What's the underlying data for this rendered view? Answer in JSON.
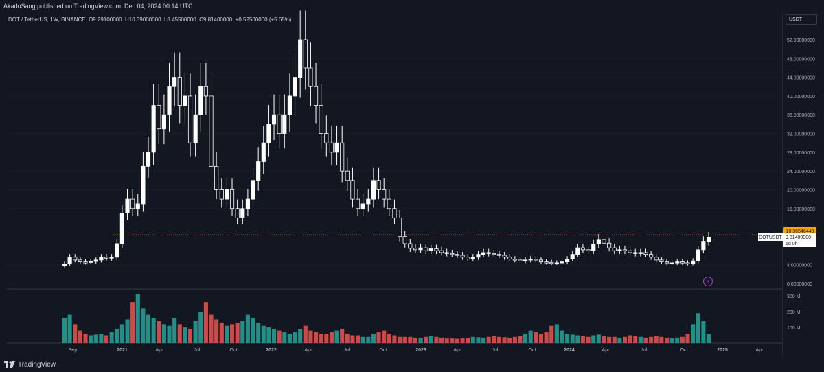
{
  "publisher": "AkadoSang published on TradingView.com, Dec 04, 2024 00:14 UTC",
  "legend": {
    "symbol": "DOT / TetherUS, 1W, BINANCE",
    "open": "O9.29100000",
    "high": "H10.39000000",
    "low": "L8.45500000",
    "close": "C9.81400000",
    "change": "+0.52500000 (+5.65%)"
  },
  "quote_currency": "USDT",
  "price_labels": {
    "level_line": "10.36546440",
    "current_ticker": "DOTUSDT",
    "current_price": "9.81400000",
    "countdown": "5d 0h"
  },
  "brand": "TradingView",
  "colors": {
    "background": "#131722",
    "candle": "#ffffff",
    "volume_up": "#26a69a",
    "volume_down": "#ef5350",
    "level_line": "#f7a600",
    "grid": "#1e222d"
  },
  "chart_data": {
    "type": "candlestick",
    "interval": "1W",
    "y_axis": {
      "ticks": [
        "52.00000000",
        "48.00000000",
        "44.00000000",
        "40.00000000",
        "36.00000000",
        "32.00000000",
        "28.00000000",
        "24.00000000",
        "20.00000000",
        "16.00000000",
        "4.00000000",
        "0.00000000"
      ],
      "ylim": [
        -1,
        56
      ]
    },
    "volume_axis": {
      "ticks": [
        "300 M",
        "200 M",
        "100 M"
      ]
    },
    "x_axis": {
      "ticks": [
        "Sep",
        "2021",
        "Apr",
        "Jul",
        "Oct",
        "2022",
        "Apr",
        "Jul",
        "Oct",
        "2023",
        "Apr",
        "Jul",
        "Oct",
        "2024",
        "Apr",
        "Jul",
        "Oct",
        "2025",
        "Apr"
      ]
    },
    "horizontal_level": 10.3654644,
    "close_path": [
      4.2,
      5.6,
      5.0,
      4.6,
      4.5,
      4.7,
      5.0,
      5.6,
      5.4,
      5.6,
      8.5,
      15,
      18,
      16,
      17,
      25,
      28,
      38,
      33,
      36,
      42,
      44,
      38,
      40,
      30,
      36,
      42,
      40,
      25,
      20,
      18,
      20,
      16,
      14,
      16,
      18,
      22,
      26,
      30,
      34,
      36,
      32,
      36,
      40,
      44,
      52,
      46,
      42,
      38,
      32,
      30,
      28,
      30,
      24,
      22,
      18,
      16,
      17,
      18,
      22,
      20,
      18,
      16,
      14,
      10,
      8.5,
      7.5,
      7.2,
      7.6,
      7.0,
      7.4,
      7.0,
      6.6,
      6.4,
      6.2,
      6.0,
      5.6,
      5.2,
      5.6,
      6.2,
      6.6,
      6.4,
      6.2,
      6.0,
      5.6,
      5.2,
      5.0,
      4.8,
      5.0,
      5.2,
      5.0,
      4.6,
      4.5,
      4.4,
      4.4,
      4.6,
      5.2,
      6.2,
      7.6,
      7.2,
      7.0,
      8.4,
      9.4,
      8.6,
      7.6,
      7.0,
      7.2,
      7.0,
      6.6,
      6.4,
      6.6,
      6.2,
      5.6,
      5.0,
      4.6,
      4.4,
      4.4,
      4.6,
      4.4,
      4.3,
      4.8,
      7.2,
      9.0,
      9.814
    ],
    "volume_path": [
      160,
      180,
      120,
      80,
      60,
      50,
      55,
      60,
      50,
      70,
      90,
      120,
      150,
      260,
      310,
      220,
      180,
      160,
      140,
      120,
      110,
      160,
      120,
      100,
      90,
      140,
      200,
      260,
      180,
      150,
      130,
      110,
      120,
      130,
      140,
      180,
      160,
      130,
      110,
      100,
      90,
      80,
      70,
      60,
      70,
      90,
      110,
      80,
      70,
      60,
      60,
      70,
      80,
      90,
      60,
      50,
      50,
      40,
      40,
      60,
      70,
      80,
      60,
      50,
      40,
      40,
      40,
      35,
      35,
      40,
      45,
      40,
      35,
      30,
      30,
      28,
      30,
      35,
      40,
      38,
      35,
      40,
      45,
      40,
      38,
      35,
      40,
      45,
      60,
      80,
      70,
      60,
      70,
      110,
      120,
      80,
      60,
      55,
      50,
      45,
      40,
      50,
      55,
      45,
      40,
      40,
      35,
      40,
      50,
      45,
      40,
      35,
      40,
      45,
      40,
      35,
      30,
      35,
      40,
      60,
      120,
      190,
      140,
      60
    ]
  }
}
